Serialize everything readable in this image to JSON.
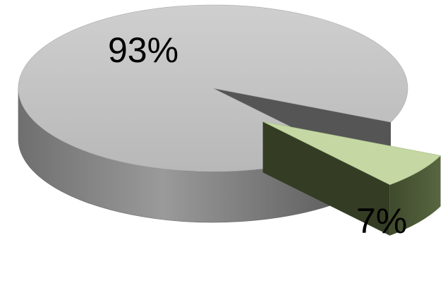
{
  "chart_data": {
    "type": "pie",
    "style": "3d-exploded",
    "title": "",
    "legend": "none",
    "slices": [
      {
        "label": "93%",
        "value": 93,
        "color": "#c0c0c0",
        "exploded": false
      },
      {
        "label": "7%",
        "value": 7,
        "color": "#c5d8a4",
        "exploded": true
      }
    ]
  }
}
